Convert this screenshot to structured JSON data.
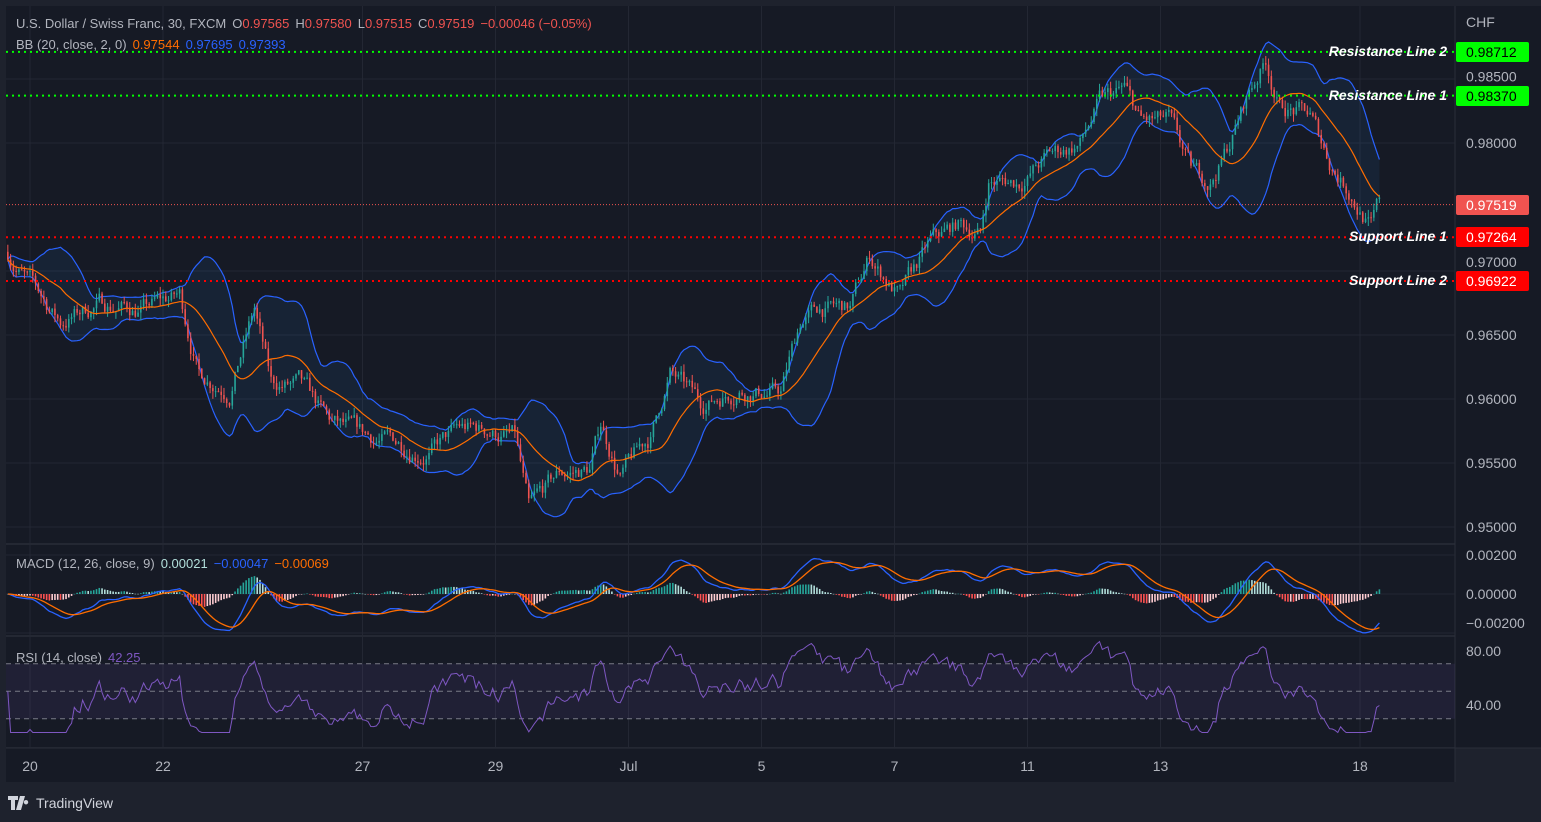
{
  "header": {
    "symbol": "U.S. Dollar / Swiss Franc, 30, FXCM",
    "o_label": "O",
    "o": "0.97565",
    "h_label": "H",
    "h": "0.97580",
    "l_label": "L",
    "l": "0.97515",
    "c_label": "C",
    "c": "0.97519",
    "change": "−0.00046 (−0.05%)"
  },
  "bb": {
    "label": "BB (20, close, 2, 0)",
    "basis": "0.97544",
    "upper": "0.97695",
    "lower": "0.97393"
  },
  "macd": {
    "label": "MACD (12, 26, close, 9)",
    "hist": "0.00021",
    "macd": "−0.00047",
    "signal": "−0.00069"
  },
  "rsi": {
    "label": "RSI (14, close)",
    "value": "42.25"
  },
  "currency": "CHF",
  "lines": [
    {
      "name": "Resistance Line 2",
      "price": 0.98712,
      "label": "0.98712",
      "color": "#00ff00",
      "text_color": "#000000"
    },
    {
      "name": "Resistance Line 1",
      "price": 0.9837,
      "label": "0.98370",
      "color": "#00ff00",
      "text_color": "#000000"
    },
    {
      "name": "",
      "price": 0.97519,
      "label": "0.97519",
      "color": "#f05350",
      "text_color": "#ffffff"
    },
    {
      "name": "Support Line 1",
      "price": 0.97264,
      "label": "0.97264",
      "color": "#ff0000",
      "text_color": "#ffffff"
    },
    {
      "name": "Support Line 2",
      "price": 0.96922,
      "label": "0.96922",
      "color": "#ff0000",
      "text_color": "#ffffff"
    }
  ],
  "footer": {
    "brand": "TradingView"
  },
  "colors": {
    "up": "#26a69a",
    "down": "#ef5350",
    "bb_band": "#2962ff",
    "bb_basis": "#ff6d00",
    "macd": "#2962ff",
    "signal": "#ff6d00",
    "rsi": "#7e57c2",
    "background": "#161a25"
  },
  "chart_data": {
    "type": "candlestick",
    "title": "U.S. Dollar / Swiss Franc, 30, FXCM",
    "y_ticks": [
      "0.98500",
      "0.98000",
      "0.97000",
      "0.96500",
      "0.96000",
      "0.95500",
      "0.95000"
    ],
    "y_tick_values": [
      0.985,
      0.98,
      0.97,
      0.965,
      0.96,
      0.955,
      0.95
    ],
    "ylim": [
      0.9485,
      0.9888
    ],
    "x_ticks": [
      "20",
      "22",
      "27",
      "29",
      "Jul",
      "5",
      "7",
      "11",
      "13",
      "18"
    ],
    "trading_days": [
      "Jun 19",
      "Jun 20",
      "Jun 21",
      "Jun 22",
      "Jun 23",
      "Jun 26",
      "Jun 27",
      "Jun 28",
      "Jun 29",
      "Jun 30",
      "Jul 3",
      "Jul 4",
      "Jul 5",
      "Jul 6",
      "Jul 7",
      "Jul 10",
      "Jul 11",
      "Jul 12",
      "Jul 13",
      "Jul 14",
      "Jul 17",
      "Jul 18"
    ],
    "approx_close_path": [
      [
        "Jun 19 16:00",
        0.9715
      ],
      [
        "Jun 20 00:00",
        0.969
      ],
      [
        "Jun 20 11:00",
        0.966
      ],
      [
        "Jun 21 01:00",
        0.9675
      ],
      [
        "Jun 21 16:00",
        0.967
      ],
      [
        "Jun 22 06:00",
        0.968
      ],
      [
        "Jun 22 13:00",
        0.962
      ],
      [
        "Jun 23 00:00",
        0.961
      ],
      [
        "Jun 23 09:00",
        0.967
      ],
      [
        "Jun 23 15:00",
        0.961
      ],
      [
        "Jun 26 01:00",
        0.961
      ],
      [
        "Jun 26 12:00",
        0.958
      ],
      [
        "Jun 26 23:00",
        0.957
      ],
      [
        "Jun 27 13:00",
        0.9565
      ],
      [
        "Jun 28 00:00",
        0.956
      ],
      [
        "Jun 28 11:00",
        0.9575
      ],
      [
        "Jun 28 22:00",
        0.9575
      ],
      [
        "Jun 29 07:00",
        0.957
      ],
      [
        "Jun 29 12:00",
        0.951
      ],
      [
        "Jun 29 23:00",
        0.954
      ],
      [
        "Jun 30 10:00",
        0.9545
      ],
      [
        "Jun 30 14:00",
        0.958
      ],
      [
        "Jun 30 21:00",
        0.954
      ],
      [
        "Jul 3 08:00",
        0.957
      ],
      [
        "Jul 3 15:00",
        0.962
      ],
      [
        "Jul 4 02:00",
        0.9595
      ],
      [
        "Jul 4 16:00",
        0.961
      ],
      [
        "Jul 5 07:00",
        0.9605
      ],
      [
        "Jul 5 14:00",
        0.966
      ],
      [
        "Jul 5 21:00",
        0.967
      ],
      [
        "Jul 6 08:00",
        0.967
      ],
      [
        "Jul 6 15:00",
        0.971
      ],
      [
        "Jul 7 02:00",
        0.968
      ],
      [
        "Jul 7 13:00",
        0.972
      ],
      [
        "Jul 7 23:00",
        0.9735
      ],
      [
        "Jul 10 07:00",
        0.973
      ],
      [
        "Jul 10 10:00",
        0.977
      ],
      [
        "Jul 10 21:00",
        0.977
      ],
      [
        "Jul 11 08:00",
        0.979
      ],
      [
        "Jul 11 19:00",
        0.98
      ],
      [
        "Jul 12 02:00",
        0.983
      ],
      [
        "Jul 12 11:00",
        0.984
      ],
      [
        "Jul 12 17:00",
        0.9815
      ],
      [
        "Jul 13 03:00",
        0.9815
      ],
      [
        "Jul 13 11:00",
        0.9775
      ],
      [
        "Jul 13 18:00",
        0.977
      ],
      [
        "Jul 14 01:00",
        0.98
      ],
      [
        "Jul 14 08:00",
        0.984
      ],
      [
        "Jul 14 14:00",
        0.9865
      ],
      [
        "Jul 14 19:00",
        0.983
      ],
      [
        "Jul 17 06:00",
        0.982
      ],
      [
        "Jul 17 13:00",
        0.9785
      ],
      [
        "Jul 17 20:00",
        0.9765
      ],
      [
        "Jul 18 04:00",
        0.9735
      ],
      [
        "Jul 18 07:00",
        0.9752
      ]
    ],
    "macd": {
      "y_ticks": [
        "0.00200",
        "0.00000",
        "−0.00200"
      ],
      "y_tick_values": [
        0.002,
        0,
        -0.002
      ]
    },
    "rsi": {
      "y_ticks": [
        "80.00",
        "40.00"
      ],
      "y_tick_values": [
        80,
        40
      ],
      "bands": [
        70,
        50,
        30
      ]
    }
  }
}
